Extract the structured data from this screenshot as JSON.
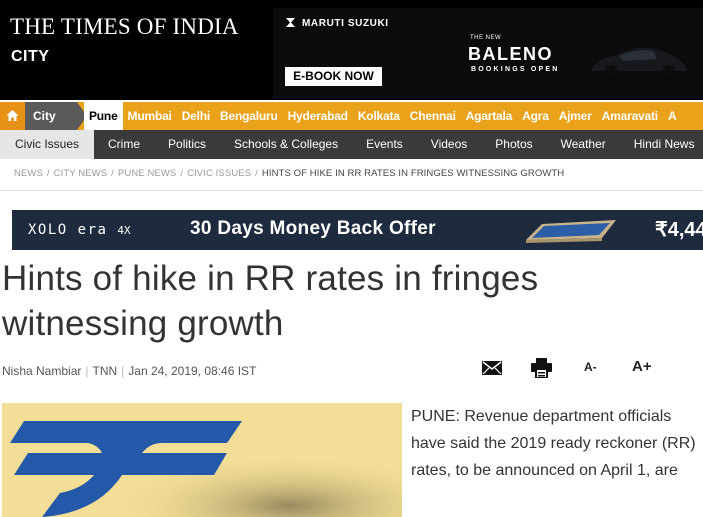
{
  "header": {
    "logo_text": "THE TIMES OF INDIA",
    "section_label": "CITY",
    "ad": {
      "brand": "MARUTI SUZUKI",
      "cta": "E-BOOK NOW",
      "tag": "THE NEW",
      "model": "BALENO",
      "booking": "BOOKINGS OPEN"
    }
  },
  "city_nav": {
    "home_icon": "home-icon",
    "section": "City",
    "items": [
      {
        "label": "Pune",
        "active": true
      },
      {
        "label": "Mumbai"
      },
      {
        "label": "Delhi"
      },
      {
        "label": "Bengaluru"
      },
      {
        "label": "Hyderabad"
      },
      {
        "label": "Kolkata"
      },
      {
        "label": "Chennai"
      },
      {
        "label": "Agartala"
      },
      {
        "label": "Agra"
      },
      {
        "label": "Ajmer"
      },
      {
        "label": "Amaravati"
      },
      {
        "label": "A"
      }
    ]
  },
  "sub_nav": {
    "items": [
      {
        "label": "Civic Issues",
        "active": true
      },
      {
        "label": "Crime"
      },
      {
        "label": "Politics"
      },
      {
        "label": "Schools & Colleges"
      },
      {
        "label": "Events"
      },
      {
        "label": "Videos"
      },
      {
        "label": "Photos"
      },
      {
        "label": "Weather"
      },
      {
        "label": "Hindi News"
      }
    ]
  },
  "breadcrumb": {
    "items": [
      "NEWS",
      "CITY NEWS",
      "PUNE NEWS",
      "CIVIC ISSUES"
    ],
    "separator": "/",
    "current": "HINTS OF HIKE IN RR RATES IN FRINGES WITNESSING GROWTH"
  },
  "promo_ad": {
    "brand": "XOLO era",
    "model": "4X",
    "offer": "30 Days Money Back Offer",
    "price": "₹4,44"
  },
  "article": {
    "headline": "Hints of hike in RR rates in fringes witnessing growth",
    "author": "Nisha Nambiar",
    "agency": "TNN",
    "date": "Jan 24, 2019, 08:46 IST",
    "body": "PUNE: Revenue department officials have said the 2019 ready reckoner (RR) rates, to be announced on April 1, are"
  },
  "tools": {
    "email_icon": "email-icon",
    "print_icon": "print-icon",
    "decrease_font_label": "A-",
    "increase_font_label": "A+"
  },
  "colors": {
    "header_bg": "#000000",
    "city_nav_bg": "#e9a21a",
    "sub_nav_bg": "#3a3a3a",
    "promo_bg": "#1e2b3e",
    "rupee_blue": "#2458a8"
  }
}
